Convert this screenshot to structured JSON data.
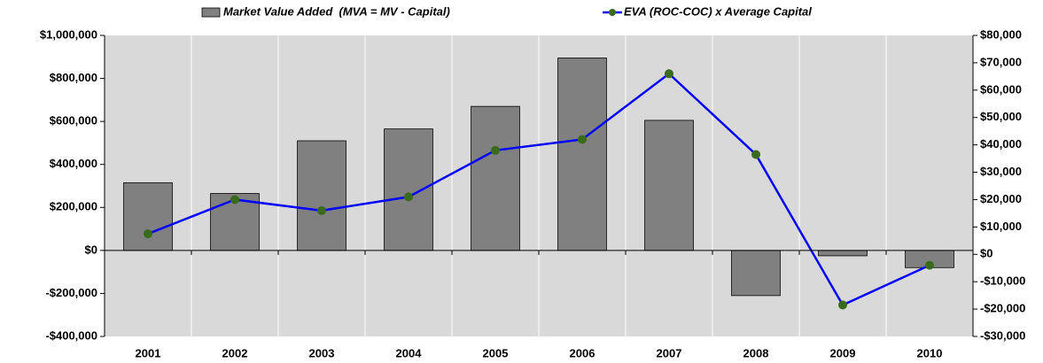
{
  "chart_data": {
    "type": "bar-line",
    "categories": [
      "2001",
      "2002",
      "2003",
      "2004",
      "2005",
      "2006",
      "2007",
      "2008",
      "2009",
      "2010"
    ],
    "series": [
      {
        "name": "Market Value Added  (MVA = MV - Capital)",
        "type": "bar",
        "color": "#808080",
        "values": [
          315000,
          265000,
          510000,
          565000,
          670000,
          895000,
          605000,
          -210000,
          -25000,
          -80000
        ]
      },
      {
        "name": "EVA (ROC-COC) x Average Capital",
        "type": "line",
        "axis": "y2",
        "color": "#0000ff",
        "marker_color": "#3a6a1c",
        "values": [
          7500,
          20000,
          16000,
          21000,
          38000,
          42000,
          66000,
          36500,
          -18500,
          -4000
        ]
      }
    ],
    "ylim": [
      -400000,
      1000000
    ],
    "yticks": [
      {
        "value": -400000,
        "label": "-$400,000"
      },
      {
        "value": -200000,
        "label": "-$200,000"
      },
      {
        "value": 0,
        "label": "$0"
      },
      {
        "value": 200000,
        "label": "$200,000"
      },
      {
        "value": 400000,
        "label": "$400,000"
      },
      {
        "value": 600000,
        "label": "$600,000"
      },
      {
        "value": 800000,
        "label": "$800,000"
      },
      {
        "value": 1000000,
        "label": "$1,000,000"
      }
    ],
    "y2lim": [
      -30000,
      80000
    ],
    "y2ticks": [
      {
        "value": -30000,
        "label": "-$30,000"
      },
      {
        "value": -20000,
        "label": "-$20,000"
      },
      {
        "value": -10000,
        "label": "-$10,000"
      },
      {
        "value": 0,
        "label": "$0"
      },
      {
        "value": 10000,
        "label": "$10,000"
      },
      {
        "value": 20000,
        "label": "$20,000"
      },
      {
        "value": 30000,
        "label": "$30,000"
      },
      {
        "value": 40000,
        "label": "$40,000"
      },
      {
        "value": 50000,
        "label": "$50,000"
      },
      {
        "value": 60000,
        "label": "$60,000"
      },
      {
        "value": 70000,
        "label": "$70,000"
      },
      {
        "value": 80000,
        "label": "$80,000"
      }
    ],
    "grid": true,
    "legend": "top"
  }
}
